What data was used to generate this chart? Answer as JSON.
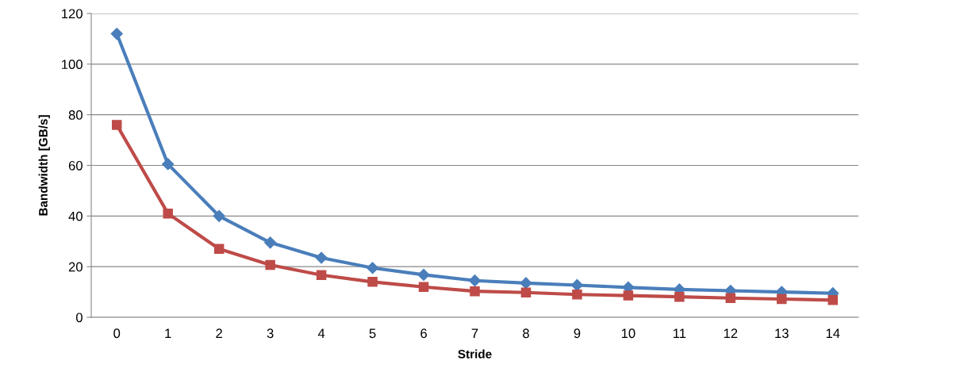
{
  "chart_data": {
    "type": "line",
    "xlabel": "Stride",
    "ylabel": "Bandwidth [GB/s]",
    "categories": [
      "0",
      "1",
      "2",
      "3",
      "4",
      "5",
      "6",
      "7",
      "8",
      "9",
      "10",
      "11",
      "12",
      "13",
      "14"
    ],
    "series": [
      {
        "color": "#4a7ebb",
        "marker": "diamond",
        "values": [
          112,
          60.5,
          40,
          29.5,
          23.5,
          19.5,
          16.8,
          14.5,
          13.5,
          12.7,
          11.8,
          11,
          10.5,
          10,
          9.5
        ]
      },
      {
        "color": "#be4b48",
        "marker": "square",
        "values": [
          76,
          41,
          27,
          20.7,
          16.7,
          14,
          12,
          10.3,
          9.8,
          9,
          8.6,
          8.1,
          7.6,
          7.2,
          6.8
        ]
      }
    ],
    "ylim": [
      0,
      120
    ],
    "yticks": [
      0,
      20,
      40,
      60,
      80,
      100,
      120
    ],
    "grid": "y",
    "line_style": "solid"
  }
}
